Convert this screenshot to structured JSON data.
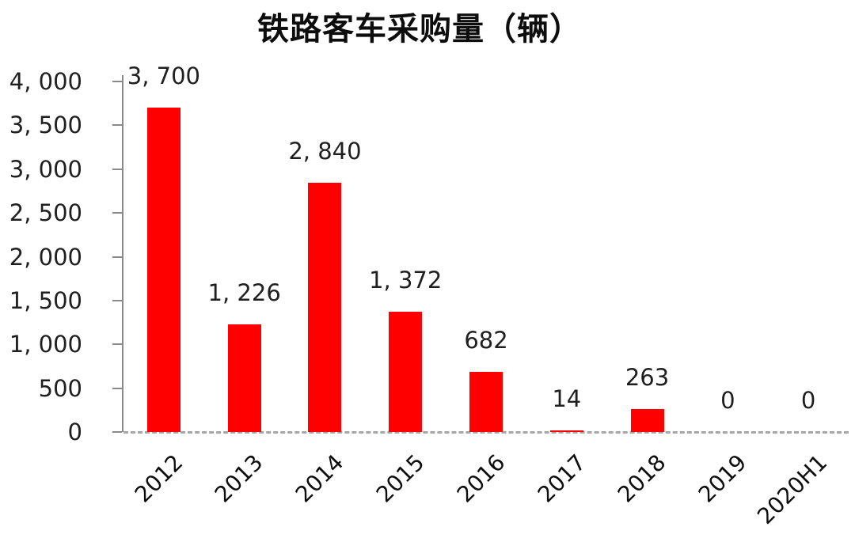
{
  "chart_data": {
    "type": "bar",
    "title": "铁路客车采购量（辆）",
    "categories": [
      "2012",
      "2013",
      "2014",
      "2015",
      "2016",
      "2017",
      "2018",
      "2019",
      "2020H1"
    ],
    "values": [
      3700,
      1226,
      2840,
      1372,
      682,
      14,
      263,
      0,
      0
    ],
    "value_labels": [
      "3, 700",
      "1, 226",
      "2, 840",
      "1, 372",
      "682",
      "14",
      "263",
      "0",
      "0"
    ],
    "yticks": [
      0,
      500,
      1000,
      1500,
      2000,
      2500,
      3000,
      3500,
      4000
    ],
    "ytick_labels": [
      "0",
      "500",
      "1, 000",
      "1, 500",
      "2, 000",
      "2, 500",
      "3, 000",
      "3, 500",
      "4, 000"
    ],
    "ylim": [
      0,
      4000
    ],
    "xlabel": "",
    "ylabel": "",
    "grid": false,
    "legend": false,
    "bar_color": "#fe0000",
    "axis_color": "#8a8a8a",
    "baseline_color": "#a6a6a6",
    "text_color": "#1f1f1f",
    "baseline_style": "dashed",
    "x_label_rotation_deg": -45
  }
}
